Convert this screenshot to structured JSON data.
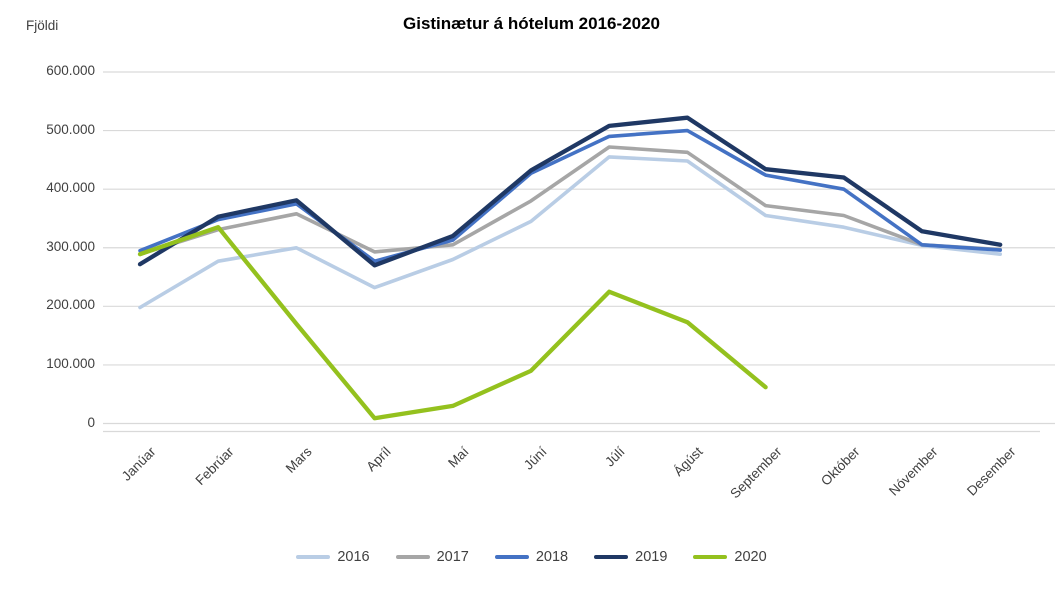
{
  "title": "Gistinætur á hótelum 2016-2020",
  "y_axis": {
    "label": "Fjöldi",
    "tick_labels": [
      "600.000",
      "500.000",
      "400.000",
      "300.000",
      "200.000",
      "100.000",
      "0"
    ]
  },
  "chart_data": {
    "type": "line",
    "title": "Gistinætur á hótelum 2016-2020",
    "ylabel": "Fjöldi",
    "xlabel": "",
    "ylim": [
      0,
      600000
    ],
    "ytick_interval": 100000,
    "grid": "horizontal",
    "gridline_color": "#D9D9D9",
    "legend_position": "bottom",
    "categories": [
      "Janúar",
      "Febrúar",
      "Mars",
      "Apríl",
      "Maí",
      "Júní",
      "Júlí",
      "Ágúst",
      "September",
      "Október",
      "Nóvember",
      "Desember"
    ],
    "series": [
      {
        "name": "2016",
        "color": "#B9CDE5",
        "width": 3.6,
        "values": [
          198000,
          277000,
          300000,
          232000,
          280000,
          345000,
          455000,
          448000,
          355000,
          335000,
          304000,
          289000
        ]
      },
      {
        "name": "2017",
        "color": "#A6A6A6",
        "width": 3.6,
        "values": [
          289000,
          331000,
          358000,
          293000,
          305000,
          380000,
          472000,
          463000,
          372000,
          355000,
          305000,
          297000
        ]
      },
      {
        "name": "2018",
        "color": "#4472C4",
        "width": 3.6,
        "values": [
          295000,
          348000,
          375000,
          277000,
          313000,
          427000,
          490000,
          500000,
          424000,
          400000,
          305000,
          296000
        ]
      },
      {
        "name": "2019",
        "color": "#1F3864",
        "width": 4.3,
        "values": [
          272000,
          353000,
          381000,
          270000,
          320000,
          432000,
          508000,
          522000,
          434000,
          420000,
          328000,
          305000
        ]
      },
      {
        "name": "2020",
        "color": "#94C11E",
        "width": 4.3,
        "values": [
          289000,
          335000,
          170000,
          9000,
          30000,
          90000,
          225000,
          173000,
          62000,
          null,
          null,
          null
        ]
      }
    ]
  }
}
